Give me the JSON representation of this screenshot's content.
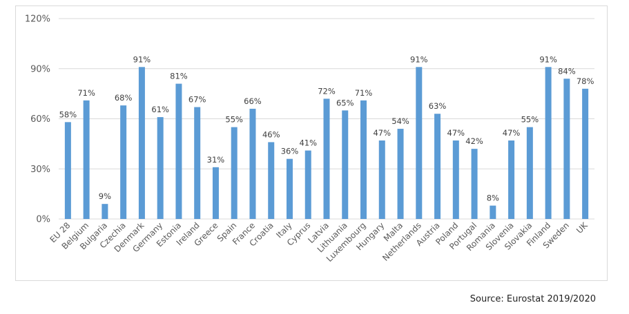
{
  "chart_data": {
    "type": "bar",
    "categories": [
      "EU 28",
      "Belgium",
      "Bulgaria",
      "Czechia",
      "Denmark",
      "Germany",
      "Estonia",
      "Ireland",
      "Greece",
      "Spain",
      "France",
      "Croatia",
      "Italy",
      "Cyprus",
      "Latvia",
      "Lithuania",
      "Luxembourg",
      "Hungary",
      "Malta",
      "Netherlands",
      "Austria",
      "Poland",
      "Portugal",
      "Romania",
      "Slovenia",
      "Slovakia",
      "Finland",
      "Sweden",
      "UK"
    ],
    "values": [
      58,
      71,
      9,
      68,
      91,
      61,
      81,
      67,
      31,
      55,
      66,
      46,
      36,
      41,
      72,
      65,
      71,
      47,
      54,
      91,
      63,
      47,
      42,
      8,
      47,
      55,
      91,
      84,
      78
    ],
    "value_labels": [
      "58%",
      "71%",
      "9%",
      "68%",
      "91%",
      "61%",
      "81%",
      "67%",
      "31%",
      "55%",
      "66%",
      "46%",
      "36%",
      "41%",
      "72%",
      "65%",
      "71%",
      "47%",
      "54%",
      "91%",
      "63%",
      "47%",
      "42%",
      "8%",
      "47%",
      "55%",
      "91%",
      "84%",
      "78%"
    ],
    "ylim": [
      0,
      120
    ],
    "yticks": [
      0,
      30,
      60,
      90,
      120
    ],
    "ytick_labels": [
      "0%",
      "30%",
      "60%",
      "90%",
      "120%"
    ],
    "grid": true,
    "legend": false,
    "bar_color": "#5b9bd5",
    "grid_color": "#d9d9d9"
  },
  "source_note": "Source: Eurostat 2019/2020"
}
